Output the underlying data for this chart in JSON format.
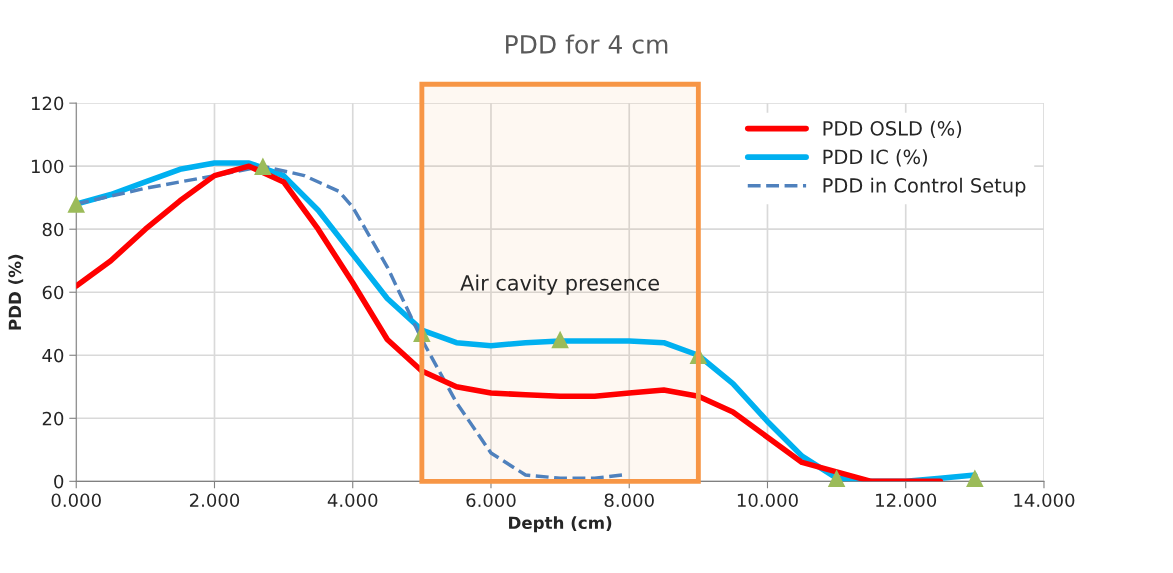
{
  "chart_data": {
    "type": "line",
    "title": "PDD for 4 cm",
    "xlabel": "Depth (cm)",
    "ylabel": "PDD (%)",
    "xlim": [
      0,
      14
    ],
    "xticks": [
      {
        "value": 0,
        "label": "0.000"
      },
      {
        "value": 2,
        "label": "2.000"
      },
      {
        "value": 4,
        "label": "4.000"
      },
      {
        "value": 6,
        "label": "6.000"
      },
      {
        "value": 8,
        "label": "8.000"
      },
      {
        "value": 10,
        "label": "10.000"
      },
      {
        "value": 12,
        "label": "12.000"
      },
      {
        "value": 14,
        "label": "14.000"
      }
    ],
    "ylim": [
      0,
      120
    ],
    "yticks": [
      0,
      20,
      40,
      60,
      80,
      100,
      120
    ],
    "grid": true,
    "legend": "top right",
    "bands": [
      {
        "axis": "x",
        "from": 5,
        "to": 9,
        "label": "Air cavity presence",
        "color": "#f79646"
      }
    ],
    "series": [
      {
        "name": "PDD OSLD (%)",
        "color": "#ff0000",
        "line_style": "solid",
        "marker": "none",
        "x": [
          0,
          0.5,
          1,
          1.5,
          2,
          2.5,
          3,
          3.5,
          4,
          4.5,
          5,
          5.5,
          6,
          6.5,
          7,
          7.5,
          8,
          8.5,
          9,
          9.5,
          10,
          10.5,
          11.5,
          12,
          12.5
        ],
        "values": [
          62,
          70,
          80,
          89,
          97,
          100,
          95,
          80,
          63,
          45,
          35,
          30,
          28,
          27.5,
          27,
          27,
          28,
          29,
          27,
          22,
          14,
          6,
          0,
          0,
          0
        ]
      },
      {
        "name": "PDD IC (%)",
        "color": "#00b0f0",
        "line_style": "solid",
        "marker": "none",
        "x": [
          0,
          0.5,
          1,
          1.5,
          2,
          2.5,
          3,
          3.5,
          4,
          4.5,
          5,
          5.5,
          6,
          6.5,
          7,
          7.5,
          8,
          8.5,
          9,
          9.5,
          10,
          10.5,
          11,
          11.5,
          12,
          12.5,
          13
        ],
        "values": [
          88,
          91,
          95,
          99,
          101,
          101,
          97,
          86,
          72,
          58,
          48,
          44,
          43,
          44,
          44.5,
          44.5,
          44.5,
          44,
          40,
          31,
          19,
          8,
          1,
          0,
          0,
          1,
          2
        ]
      },
      {
        "name": "PDD in Control Setup",
        "color": "#4f81bd",
        "line_style": "dashed",
        "marker": "none",
        "x": [
          0,
          1,
          2,
          2.7,
          3.3,
          3.8,
          4,
          4.5,
          5,
          5.5,
          6,
          6.5,
          7,
          7.5,
          7.9
        ],
        "values": [
          88,
          93,
          97,
          100,
          97,
          92,
          87,
          68,
          45,
          25,
          9,
          2,
          1,
          1,
          2
        ]
      },
      {
        "type": "scatter",
        "color": "#9bbb59",
        "marker": "triangle",
        "x": [
          0,
          2.7,
          5,
          7,
          9,
          11,
          13
        ],
        "values": [
          88,
          100,
          47,
          45,
          40,
          1,
          1
        ]
      }
    ]
  }
}
